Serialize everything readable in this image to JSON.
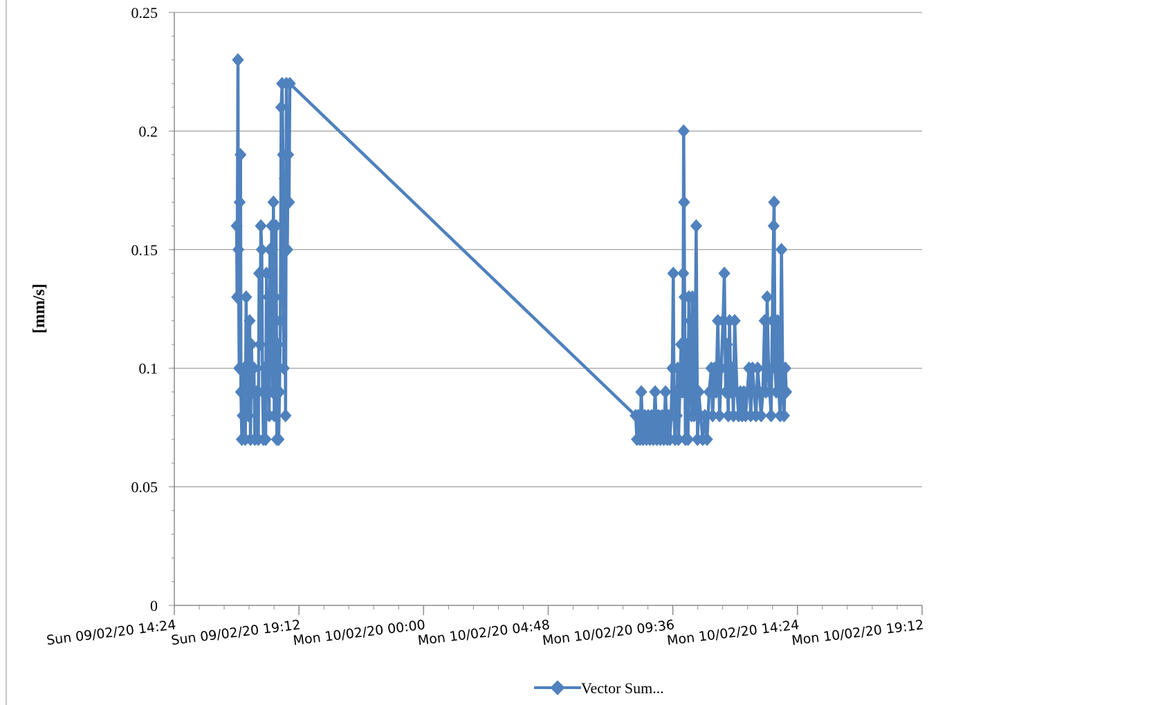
{
  "chart_data": {
    "type": "line",
    "title": "",
    "xlabel": "",
    "ylabel": "[mm/s]",
    "ylim": [
      0,
      0.25
    ],
    "xlim": [
      "Sun 09/02/20 14:24",
      "Mon 10/02/20 19:12"
    ],
    "grid": "horizontal",
    "legend_position": "bottom",
    "series_color": "#4f81bd",
    "marker": "diamond",
    "y_ticks": [
      "0",
      "0.05",
      "0.1",
      "0.15",
      "0.2",
      "0.25"
    ],
    "x_ticks": [
      "Sun 09/02/20 14:24",
      "Sun 09/02/20 19:12",
      "Mon 10/02/20 00:00",
      "Mon 10/02/20 04:48",
      "Mon 10/02/20 09:36",
      "Mon 10/02/20 14:24",
      "Mon 10/02/20 19:12"
    ],
    "series": [
      {
        "name": "Vector Sum...",
        "points": [
          {
            "x": "2020-02-09 16:48",
            "y": 0.16
          },
          {
            "x": "2020-02-09 16:49",
            "y": 0.13
          },
          {
            "x": "2020-02-09 16:51",
            "y": 0.23
          },
          {
            "x": "2020-02-09 16:52",
            "y": 0.15
          },
          {
            "x": "2020-02-09 16:54",
            "y": 0.1
          },
          {
            "x": "2020-02-09 16:55",
            "y": 0.17
          },
          {
            "x": "2020-02-09 16:57",
            "y": 0.19
          },
          {
            "x": "2020-02-09 16:58",
            "y": 0.09
          },
          {
            "x": "2020-02-09 17:00",
            "y": 0.07
          },
          {
            "x": "2020-02-09 17:02",
            "y": 0.08
          },
          {
            "x": "2020-02-09 17:05",
            "y": 0.1
          },
          {
            "x": "2020-02-09 17:08",
            "y": 0.07
          },
          {
            "x": "2020-02-09 17:10",
            "y": 0.13
          },
          {
            "x": "2020-02-09 17:12",
            "y": 0.09
          },
          {
            "x": "2020-02-09 17:15",
            "y": 0.08
          },
          {
            "x": "2020-02-09 17:18",
            "y": 0.12
          },
          {
            "x": "2020-02-09 17:20",
            "y": 0.07
          },
          {
            "x": "2020-02-09 17:22",
            "y": 0.11
          },
          {
            "x": "2020-02-09 17:25",
            "y": 0.09
          },
          {
            "x": "2020-02-09 17:28",
            "y": 0.1
          },
          {
            "x": "2020-02-09 17:30",
            "y": 0.07
          },
          {
            "x": "2020-02-09 17:34",
            "y": 0.09
          },
          {
            "x": "2020-02-09 17:38",
            "y": 0.07
          },
          {
            "x": "2020-02-09 17:40",
            "y": 0.14
          },
          {
            "x": "2020-02-09 17:42",
            "y": 0.11
          },
          {
            "x": "2020-02-09 17:44",
            "y": 0.16
          },
          {
            "x": "2020-02-09 17:46",
            "y": 0.15
          },
          {
            "x": "2020-02-09 17:48",
            "y": 0.09
          },
          {
            "x": "2020-02-09 17:50",
            "y": 0.07
          },
          {
            "x": "2020-02-09 17:52",
            "y": 0.1
          },
          {
            "x": "2020-02-09 17:55",
            "y": 0.07
          },
          {
            "x": "2020-02-09 17:57",
            "y": 0.14
          },
          {
            "x": "2020-02-09 17:59",
            "y": 0.09
          },
          {
            "x": "2020-02-09 18:01",
            "y": 0.13
          },
          {
            "x": "2020-02-09 18:03",
            "y": 0.08
          },
          {
            "x": "2020-02-09 18:05",
            "y": 0.15
          },
          {
            "x": "2020-02-09 18:07",
            "y": 0.1
          },
          {
            "x": "2020-02-09 18:09",
            "y": 0.16
          },
          {
            "x": "2020-02-09 18:11",
            "y": 0.09
          },
          {
            "x": "2020-02-09 18:13",
            "y": 0.17
          },
          {
            "x": "2020-02-09 18:15",
            "y": 0.08
          },
          {
            "x": "2020-02-09 18:17",
            "y": 0.13
          },
          {
            "x": "2020-02-09 18:19",
            "y": 0.16
          },
          {
            "x": "2020-02-09 18:21",
            "y": 0.07
          },
          {
            "x": "2020-02-09 18:23",
            "y": 0.11
          },
          {
            "x": "2020-02-09 18:25",
            "y": 0.07
          },
          {
            "x": "2020-02-09 18:27",
            "y": 0.09
          },
          {
            "x": "2020-02-09 18:29",
            "y": 0.12
          },
          {
            "x": "2020-02-09 18:31",
            "y": 0.21
          },
          {
            "x": "2020-02-09 18:33",
            "y": 0.22
          },
          {
            "x": "2020-02-09 18:35",
            "y": 0.19
          },
          {
            "x": "2020-02-09 18:37",
            "y": 0.1
          },
          {
            "x": "2020-02-09 18:39",
            "y": 0.18
          },
          {
            "x": "2020-02-09 18:41",
            "y": 0.08
          },
          {
            "x": "2020-02-09 18:43",
            "y": 0.22
          },
          {
            "x": "2020-02-09 18:45",
            "y": 0.15
          },
          {
            "x": "2020-02-09 18:47",
            "y": 0.19
          },
          {
            "x": "2020-02-09 18:49",
            "y": 0.17
          },
          {
            "x": "2020-02-09 18:51",
            "y": 0.22
          },
          {
            "x": "2020-02-10 08:10",
            "y": 0.08
          },
          {
            "x": "2020-02-10 08:13",
            "y": 0.07
          },
          {
            "x": "2020-02-10 08:16",
            "y": 0.08
          },
          {
            "x": "2020-02-10 08:20",
            "y": 0.07
          },
          {
            "x": "2020-02-10 08:23",
            "y": 0.09
          },
          {
            "x": "2020-02-10 08:27",
            "y": 0.07
          },
          {
            "x": "2020-02-10 08:31",
            "y": 0.08
          },
          {
            "x": "2020-02-10 08:35",
            "y": 0.07
          },
          {
            "x": "2020-02-10 08:39",
            "y": 0.08
          },
          {
            "x": "2020-02-10 08:43",
            "y": 0.07
          },
          {
            "x": "2020-02-10 08:47",
            "y": 0.08
          },
          {
            "x": "2020-02-10 08:51",
            "y": 0.07
          },
          {
            "x": "2020-02-10 08:55",
            "y": 0.09
          },
          {
            "x": "2020-02-10 08:59",
            "y": 0.07
          },
          {
            "x": "2020-02-10 09:03",
            "y": 0.08
          },
          {
            "x": "2020-02-10 09:07",
            "y": 0.07
          },
          {
            "x": "2020-02-10 09:11",
            "y": 0.08
          },
          {
            "x": "2020-02-10 09:15",
            "y": 0.07
          },
          {
            "x": "2020-02-10 09:19",
            "y": 0.09
          },
          {
            "x": "2020-02-10 09:23",
            "y": 0.07
          },
          {
            "x": "2020-02-10 09:26",
            "y": 0.08
          },
          {
            "x": "2020-02-10 09:29",
            "y": 0.07
          },
          {
            "x": "2020-02-10 09:32",
            "y": 0.08
          },
          {
            "x": "2020-02-10 09:35",
            "y": 0.1
          },
          {
            "x": "2020-02-10 09:37",
            "y": 0.14
          },
          {
            "x": "2020-02-10 09:39",
            "y": 0.08
          },
          {
            "x": "2020-02-10 09:41",
            "y": 0.07
          },
          {
            "x": "2020-02-10 09:43",
            "y": 0.09
          },
          {
            "x": "2020-02-10 09:45",
            "y": 0.08
          },
          {
            "x": "2020-02-10 09:47",
            "y": 0.1
          },
          {
            "x": "2020-02-10 09:49",
            "y": 0.07
          },
          {
            "x": "2020-02-10 09:52",
            "y": 0.09
          },
          {
            "x": "2020-02-10 09:55",
            "y": 0.11
          },
          {
            "x": "2020-02-10 09:58",
            "y": 0.09
          },
          {
            "x": "2020-02-10 10:00",
            "y": 0.14
          },
          {
            "x": "2020-02-10 10:01",
            "y": 0.2
          },
          {
            "x": "2020-02-10 10:02",
            "y": 0.17
          },
          {
            "x": "2020-02-10 10:03",
            "y": 0.13
          },
          {
            "x": "2020-02-10 10:05",
            "y": 0.07
          },
          {
            "x": "2020-02-10 10:07",
            "y": 0.09
          },
          {
            "x": "2020-02-10 10:09",
            "y": 0.11
          },
          {
            "x": "2020-02-10 10:11",
            "y": 0.07
          },
          {
            "x": "2020-02-10 10:13",
            "y": 0.13
          },
          {
            "x": "2020-02-10 10:15",
            "y": 0.09
          },
          {
            "x": "2020-02-10 10:17",
            "y": 0.12
          },
          {
            "x": "2020-02-10 10:19",
            "y": 0.08
          },
          {
            "x": "2020-02-10 10:21",
            "y": 0.13
          },
          {
            "x": "2020-02-10 10:23",
            "y": 0.1
          },
          {
            "x": "2020-02-10 10:25",
            "y": 0.08
          },
          {
            "x": "2020-02-10 10:27",
            "y": 0.09
          },
          {
            "x": "2020-02-10 10:30",
            "y": 0.16
          },
          {
            "x": "2020-02-10 10:33",
            "y": 0.07
          },
          {
            "x": "2020-02-10 10:36",
            "y": 0.09
          },
          {
            "x": "2020-02-10 10:40",
            "y": 0.08
          },
          {
            "x": "2020-02-10 10:45",
            "y": 0.07
          },
          {
            "x": "2020-02-10 10:50",
            "y": 0.08
          },
          {
            "x": "2020-02-10 10:55",
            "y": 0.07
          },
          {
            "x": "2020-02-10 11:00",
            "y": 0.09
          },
          {
            "x": "2020-02-10 11:05",
            "y": 0.1
          },
          {
            "x": "2020-02-10 11:08",
            "y": 0.08
          },
          {
            "x": "2020-02-10 11:12",
            "y": 0.1
          },
          {
            "x": "2020-02-10 11:16",
            "y": 0.09
          },
          {
            "x": "2020-02-10 11:20",
            "y": 0.12
          },
          {
            "x": "2020-02-10 11:24",
            "y": 0.08
          },
          {
            "x": "2020-02-10 11:28",
            "y": 0.1
          },
          {
            "x": "2020-02-10 11:32",
            "y": 0.12
          },
          {
            "x": "2020-02-10 11:35",
            "y": 0.14
          },
          {
            "x": "2020-02-10 11:38",
            "y": 0.09
          },
          {
            "x": "2020-02-10 11:41",
            "y": 0.11
          },
          {
            "x": "2020-02-10 11:44",
            "y": 0.08
          },
          {
            "x": "2020-02-10 11:47",
            "y": 0.12
          },
          {
            "x": "2020-02-10 11:50",
            "y": 0.09
          },
          {
            "x": "2020-02-10 11:53",
            "y": 0.1
          },
          {
            "x": "2020-02-10 11:56",
            "y": 0.08
          },
          {
            "x": "2020-02-10 11:59",
            "y": 0.12
          },
          {
            "x": "2020-02-10 12:04",
            "y": 0.09
          },
          {
            "x": "2020-02-10 12:08",
            "y": 0.08
          },
          {
            "x": "2020-02-10 12:12",
            "y": 0.09
          },
          {
            "x": "2020-02-10 12:16",
            "y": 0.08
          },
          {
            "x": "2020-02-10 12:20",
            "y": 0.09
          },
          {
            "x": "2020-02-10 12:24",
            "y": 0.08
          },
          {
            "x": "2020-02-10 12:28",
            "y": 0.09
          },
          {
            "x": "2020-02-10 12:32",
            "y": 0.1
          },
          {
            "x": "2020-02-10 12:36",
            "y": 0.08
          },
          {
            "x": "2020-02-10 12:40",
            "y": 0.1
          },
          {
            "x": "2020-02-10 12:44",
            "y": 0.09
          },
          {
            "x": "2020-02-10 12:48",
            "y": 0.08
          },
          {
            "x": "2020-02-10 12:52",
            "y": 0.1
          },
          {
            "x": "2020-02-10 12:56",
            "y": 0.09
          },
          {
            "x": "2020-02-10 13:00",
            "y": 0.08
          },
          {
            "x": "2020-02-10 13:04",
            "y": 0.09
          },
          {
            "x": "2020-02-10 13:08",
            "y": 0.12
          },
          {
            "x": "2020-02-10 13:11",
            "y": 0.09
          },
          {
            "x": "2020-02-10 13:14",
            "y": 0.13
          },
          {
            "x": "2020-02-10 13:17",
            "y": 0.1
          },
          {
            "x": "2020-02-10 13:20",
            "y": 0.09
          },
          {
            "x": "2020-02-10 13:23",
            "y": 0.08
          },
          {
            "x": "2020-02-10 13:26",
            "y": 0.12
          },
          {
            "x": "2020-02-10 13:29",
            "y": 0.16
          },
          {
            "x": "2020-02-10 13:30",
            "y": 0.17
          },
          {
            "x": "2020-02-10 13:32",
            "y": 0.1
          },
          {
            "x": "2020-02-10 13:35",
            "y": 0.09
          },
          {
            "x": "2020-02-10 13:38",
            "y": 0.12
          },
          {
            "x": "2020-02-10 13:41",
            "y": 0.09
          },
          {
            "x": "2020-02-10 13:44",
            "y": 0.08
          },
          {
            "x": "2020-02-10 13:47",
            "y": 0.15
          },
          {
            "x": "2020-02-10 13:50",
            "y": 0.09
          },
          {
            "x": "2020-02-10 13:53",
            "y": 0.08
          },
          {
            "x": "2020-02-10 13:56",
            "y": 0.1
          },
          {
            "x": "2020-02-10 13:58",
            "y": 0.09
          }
        ]
      }
    ]
  }
}
